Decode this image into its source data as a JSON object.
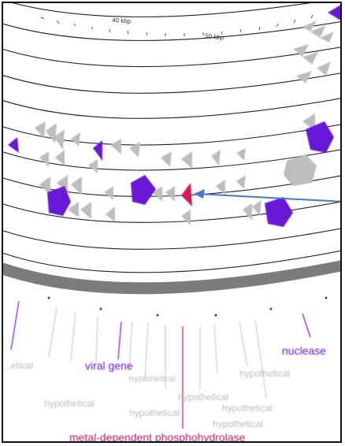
{
  "figure": {
    "scale_labels": [
      "40 kbp",
      "50 kbp"
    ],
    "gene_labels": {
      "left_partial": "...etical",
      "viral_gene": "viral gene",
      "nuclease": "nuclease",
      "hypothetical_1": "hypothetical",
      "hypothetical_2": "hypothetical",
      "hypothetical_3": "hypothetical",
      "hypothetical_4": "hypothetical",
      "hypothetical_5": "hypothetical",
      "hypothetical_6": "hypothetical",
      "hypothetical_7": "hypothetical",
      "metal_dependent": "metal-dependent phosphohydrolase"
    }
  },
  "colors": {
    "ring_stroke": "#202020",
    "gray_gene": "#bdbdbd",
    "viral_purple": "#6a18d8",
    "highlight_magenta": "#d3175f",
    "arrow_blue": "#4a78c8",
    "gray_band": "#7c7c7c",
    "hypothetical_text": "#bbbbbb",
    "metal_text": "#b0175e"
  }
}
